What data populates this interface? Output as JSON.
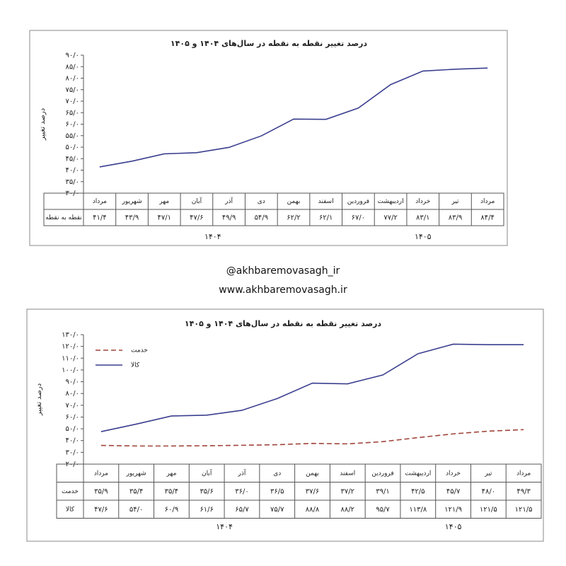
{
  "chart_data": [
    {
      "type": "line",
      "title": "درصد تغییر نقطه به نقطه در سال‌های ۱۴۰۴ و ۱۴۰۵",
      "y_label": "درصد تغییر",
      "categories": [
        "مرداد",
        "شهریور",
        "مهر",
        "آبان",
        "آذر",
        "دی",
        "بهمن",
        "اسفند",
        "فروردین",
        "اردیبهشت",
        "خرداد",
        "تیر",
        "مرداد"
      ],
      "group_labels": [
        "۱۴۰۴",
        "۱۴۰۵"
      ],
      "series": [
        {
          "name": "نقطه به نقطه",
          "color": "#3b3f8f",
          "dash": "solid",
          "values": [
            41.4,
            43.9,
            47.1,
            47.6,
            49.9,
            54.9,
            62.2,
            62.1,
            67.0,
            77.2,
            83.1,
            83.9,
            84.4
          ],
          "value_labels": [
            "۴۱/۴",
            "۴۳/۹",
            "۴۷/۱",
            "۴۷/۶",
            "۴۹/۹",
            "۵۴/۹",
            "۶۲/۲",
            "۶۲/۱",
            "۶۷/۰",
            "۷۷/۲",
            "۸۳/۱",
            "۸۳/۹",
            "۸۴/۴"
          ]
        }
      ],
      "legend": false,
      "ylim": [
        30,
        90
      ],
      "yticks": [
        {
          "value": 30,
          "label": "۳۰/۰"
        },
        {
          "value": 35,
          "label": "۳۵/۰"
        },
        {
          "value": 40,
          "label": "۴۰/۰"
        },
        {
          "value": 45,
          "label": "۴۵/۰"
        },
        {
          "value": 50,
          "label": "۵۰/۰"
        },
        {
          "value": 55,
          "label": "۵۵/۰"
        },
        {
          "value": 60,
          "label": "۶۰/۰"
        },
        {
          "value": 65,
          "label": "۶۵/۰"
        },
        {
          "value": 70,
          "label": "۷۰/۰"
        },
        {
          "value": 75,
          "label": "۷۵/۰"
        },
        {
          "value": 80,
          "label": "۸۰/۰"
        },
        {
          "value": 85,
          "label": "۸۵/۰"
        },
        {
          "value": 90,
          "label": "۹۰/۰"
        }
      ]
    },
    {
      "type": "line",
      "title": "درصد تغییر نقطه به نقطه در سال‌های ۱۴۰۴ و ۱۴۰۵",
      "y_label": "درصد تغییر",
      "categories": [
        "مرداد",
        "شهریور",
        "مهر",
        "آبان",
        "آذر",
        "دی",
        "بهمن",
        "اسفند",
        "فروردین",
        "اردیبهشت",
        "خرداد",
        "تیر",
        "مرداد"
      ],
      "group_labels": [
        "۱۴۰۴",
        "۱۴۰۵"
      ],
      "series": [
        {
          "name": "خدمت",
          "color": "#a0453a",
          "dash": "dashed",
          "values": [
            35.9,
            35.4,
            35.4,
            35.6,
            36.0,
            36.5,
            37.6,
            37.2,
            39.1,
            42.5,
            45.7,
            48.0,
            49.3
          ],
          "value_labels": [
            "۳۵/۹",
            "۳۵/۴",
            "۳۵/۴",
            "۳۵/۶",
            "۳۶/۰",
            "۳۶/۵",
            "۳۷/۶",
            "۳۷/۲",
            "۳۹/۱",
            "۴۲/۵",
            "۴۵/۷",
            "۴۸/۰",
            "۴۹/۳"
          ]
        },
        {
          "name": "کالا",
          "color": "#3b3f8f",
          "dash": "solid",
          "values": [
            47.6,
            54.0,
            60.9,
            61.6,
            65.7,
            75.7,
            88.8,
            88.2,
            95.7,
            113.8,
            121.9,
            121.5,
            121.5
          ],
          "value_labels": [
            "۴۷/۶",
            "۵۴/۰",
            "۶۰/۹",
            "۶۱/۶",
            "۶۵/۷",
            "۷۵/۷",
            "۸۸/۸",
            "۸۸/۲",
            "۹۵/۷",
            "۱۱۳/۸",
            "۱۲۱/۹",
            "۱۲۱/۵",
            "۱۲۱/۵"
          ]
        }
      ],
      "legend": true,
      "ylim": [
        20,
        130
      ],
      "yticks": [
        {
          "value": 20,
          "label": "۲۰/۰"
        },
        {
          "value": 30,
          "label": "۳۰/۰"
        },
        {
          "value": 40,
          "label": "۴۰/۰"
        },
        {
          "value": 50,
          "label": "۵۰/۰"
        },
        {
          "value": 60,
          "label": "۶۰/۰"
        },
        {
          "value": 70,
          "label": "۷۰/۰"
        },
        {
          "value": 80,
          "label": "۸۰/۰"
        },
        {
          "value": 90,
          "label": "۹۰/۰"
        },
        {
          "value": 100,
          "label": "۱۰۰/۰"
        },
        {
          "value": 110,
          "label": "۱۱۰/۰"
        },
        {
          "value": 120,
          "label": "۱۲۰/۰"
        },
        {
          "value": 130,
          "label": "۱۳۰/۰"
        }
      ]
    }
  ],
  "handle": "@akhbaremovasagh_ir",
  "website": "www.akhbaremovasagh.ir"
}
